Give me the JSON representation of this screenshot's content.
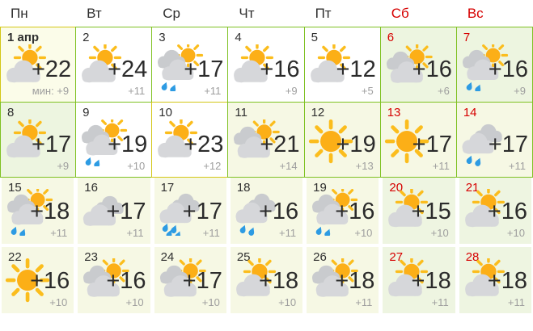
{
  "header": {
    "days": [
      {
        "label": "Пн",
        "weekend": false
      },
      {
        "label": "Вт",
        "weekend": false
      },
      {
        "label": "Ср",
        "weekend": false
      },
      {
        "label": "Чт",
        "weekend": false
      },
      {
        "label": "Пт",
        "weekend": false
      },
      {
        "label": "Сб",
        "weekend": true
      },
      {
        "label": "Вс",
        "weekend": true
      }
    ]
  },
  "calendar": {
    "weeks": [
      {
        "bordered": true,
        "days": [
          {
            "date": "1 апр",
            "bold": true,
            "red": false,
            "icon": "sun-cloud",
            "temp": "+22",
            "min": "мин: +9",
            "bg": "selected",
            "border": "yellow"
          },
          {
            "date": "2",
            "red": false,
            "icon": "sun-cloud",
            "temp": "+24",
            "min": "+11",
            "bg": "white",
            "border": "green"
          },
          {
            "date": "3",
            "red": false,
            "icon": "clouds-sun-rain",
            "temp": "+17",
            "min": "+11",
            "bg": "white",
            "border": "green"
          },
          {
            "date": "4",
            "red": false,
            "icon": "sun-cloud",
            "temp": "+16",
            "min": "+9",
            "bg": "white",
            "border": "green"
          },
          {
            "date": "5",
            "red": false,
            "icon": "sun-cloud",
            "temp": "+12",
            "min": "+5",
            "bg": "white",
            "border": "green"
          },
          {
            "date": "6",
            "red": true,
            "icon": "clouds-sun",
            "temp": "+16",
            "min": "+6",
            "bg": "green",
            "border": "green"
          },
          {
            "date": "7",
            "red": true,
            "icon": "clouds-sun-rain",
            "temp": "+16",
            "min": "+9",
            "bg": "green",
            "border": "green"
          }
        ]
      },
      {
        "bordered": true,
        "days": [
          {
            "date": "8",
            "red": false,
            "icon": "sun-cloud",
            "temp": "+17",
            "min": "+9",
            "bg": "green",
            "border": "green"
          },
          {
            "date": "9",
            "red": false,
            "icon": "clouds-sun-rain",
            "temp": "+19",
            "min": "+10",
            "bg": "white",
            "border": "green"
          },
          {
            "date": "10",
            "red": false,
            "icon": "sun-cloud",
            "temp": "+23",
            "min": "+12",
            "bg": "white",
            "border": "yellow"
          },
          {
            "date": "11",
            "red": false,
            "icon": "clouds-sun",
            "temp": "+21",
            "min": "+14",
            "bg": "cream",
            "border": "green"
          },
          {
            "date": "12",
            "red": false,
            "icon": "sun",
            "temp": "+19",
            "min": "+13",
            "bg": "cream",
            "border": "green"
          },
          {
            "date": "13",
            "red": true,
            "icon": "sun",
            "temp": "+17",
            "min": "+11",
            "bg": "cream",
            "border": "green"
          },
          {
            "date": "14",
            "red": true,
            "icon": "clouds-rain",
            "temp": "+17",
            "min": "+11",
            "bg": "cream",
            "border": "green"
          }
        ]
      },
      {
        "bordered": false,
        "days": [
          {
            "date": "15",
            "red": false,
            "icon": "clouds-sun-rain",
            "temp": "+18",
            "min": "+11",
            "bg": "cream"
          },
          {
            "date": "16",
            "red": false,
            "icon": "clouds",
            "temp": "+17",
            "min": "+11",
            "bg": "cream"
          },
          {
            "date": "17",
            "red": false,
            "icon": "clouds-rain-heavy",
            "temp": "+17",
            "min": "+11",
            "bg": "cream"
          },
          {
            "date": "18",
            "red": false,
            "icon": "clouds-rain",
            "temp": "+16",
            "min": "+11",
            "bg": "cream"
          },
          {
            "date": "19",
            "red": false,
            "icon": "clouds-sun-rain",
            "temp": "+16",
            "min": "+10",
            "bg": "cream"
          },
          {
            "date": "20",
            "red": true,
            "icon": "sun-cloud",
            "temp": "+15",
            "min": "+10",
            "bg": "green-cream"
          },
          {
            "date": "21",
            "red": true,
            "icon": "sun-cloud",
            "temp": "+16",
            "min": "+10",
            "bg": "green-cream"
          }
        ]
      },
      {
        "bordered": false,
        "days": [
          {
            "date": "22",
            "red": false,
            "icon": "sun",
            "temp": "+16",
            "min": "+10",
            "bg": "cream"
          },
          {
            "date": "23",
            "red": false,
            "icon": "clouds-sun",
            "temp": "+16",
            "min": "+10",
            "bg": "cream"
          },
          {
            "date": "24",
            "red": false,
            "icon": "clouds-sun",
            "temp": "+17",
            "min": "+10",
            "bg": "cream"
          },
          {
            "date": "25",
            "red": false,
            "icon": "sun-cloud",
            "temp": "+18",
            "min": "+10",
            "bg": "cream"
          },
          {
            "date": "26",
            "red": false,
            "icon": "clouds-sun",
            "temp": "+18",
            "min": "+11",
            "bg": "cream"
          },
          {
            "date": "27",
            "red": true,
            "icon": "sun-cloud",
            "temp": "+18",
            "min": "+11",
            "bg": "green-cream"
          },
          {
            "date": "28",
            "red": true,
            "icon": "sun-cloud",
            "temp": "+18",
            "min": "+11",
            "bg": "green-cream"
          }
        ]
      }
    ]
  },
  "colors": {
    "border_green": "#7fc122",
    "border_yellow": "#d3c716",
    "bg_white": "#ffffff",
    "bg_cream": "#f6f8e4",
    "bg_selected": "#fbfce9",
    "bg_weekend_green": "#edf5e0",
    "bg_weekend_soft": "#eef5e1",
    "text_dark": "#2f2f2f",
    "text_red": "#d60000",
    "text_gray": "#9e9e9e",
    "sun": "#fcaf17",
    "sun_ray": "#fbbd1d",
    "cloud_front": "#d6d7da",
    "cloud_back": "#c9cbce",
    "raindrop": "#2d9be3"
  }
}
